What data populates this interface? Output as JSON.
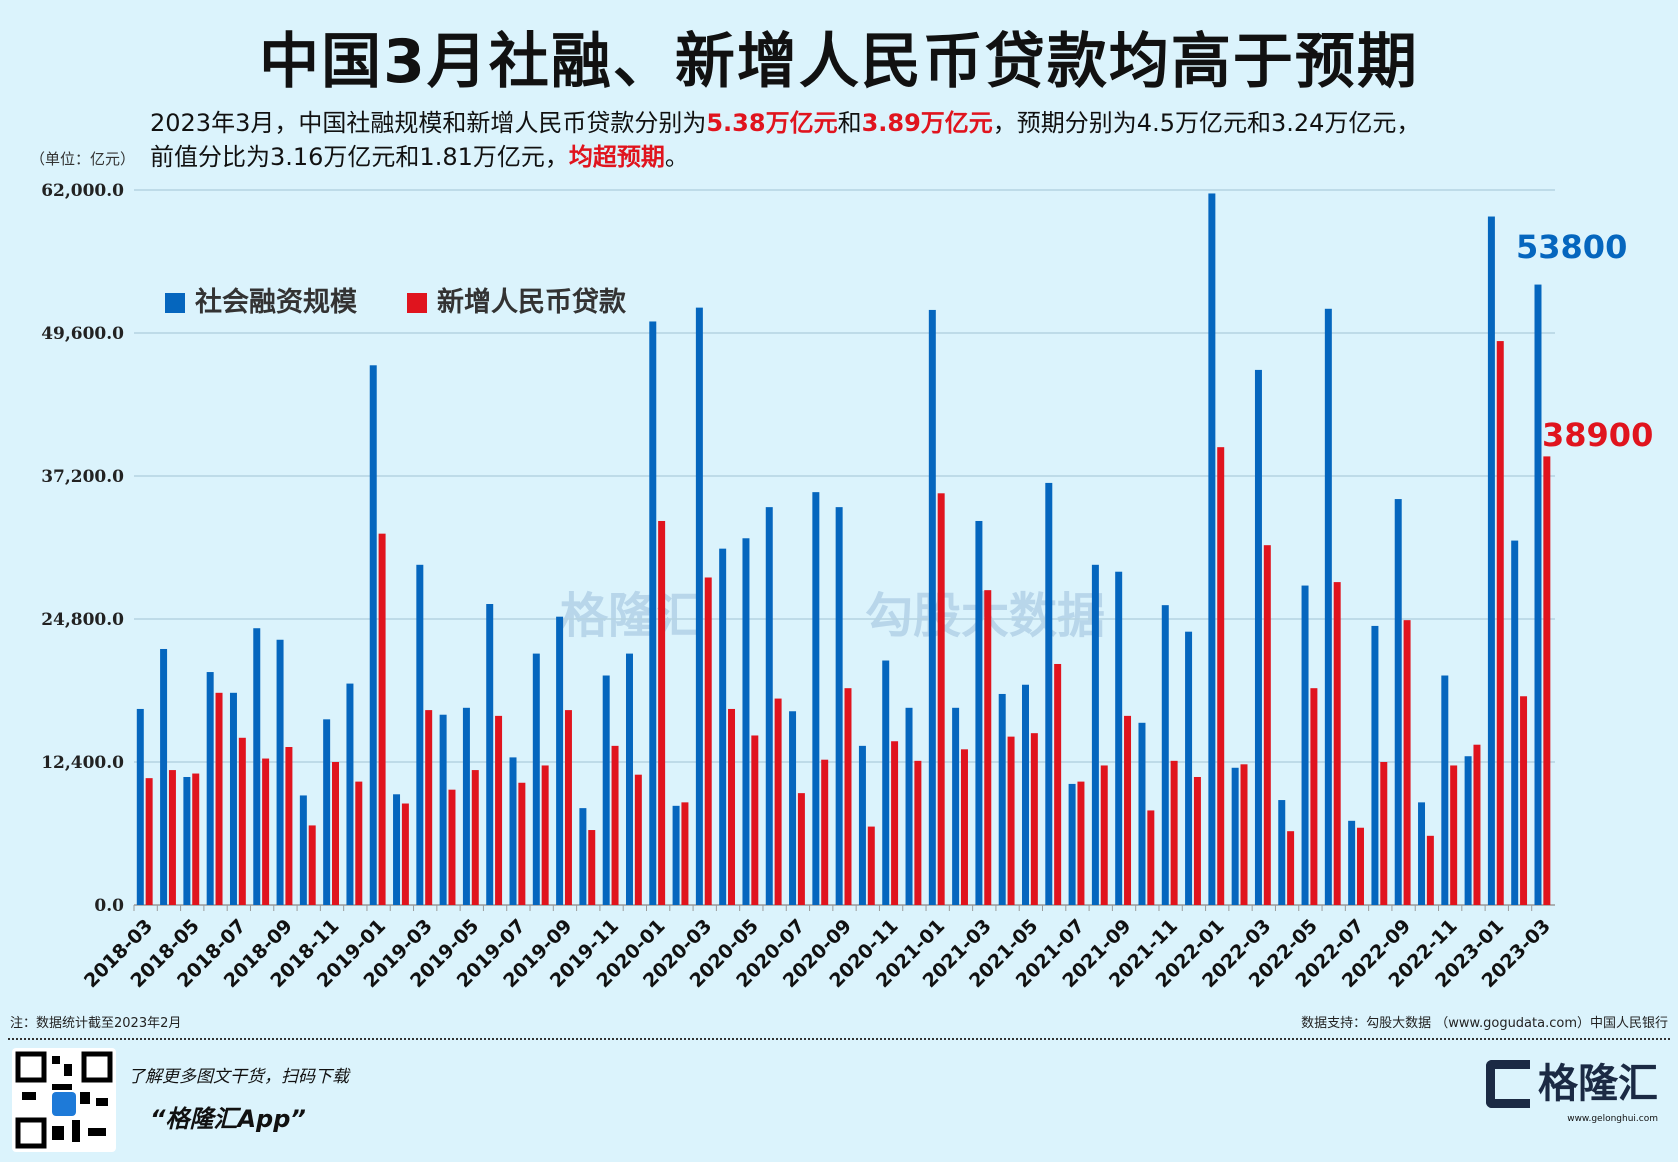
{
  "title": "中国3月社融、新增人民币贷款均高于预期",
  "subtitle": {
    "line1_a": "2023年3月，中国社融规模和新增人民币贷款分别为",
    "line1_hl1": "5.38万亿元",
    "line1_b": "和",
    "line1_hl2": "3.89万亿元",
    "line1_c": "，预期分别为4.5万亿元和3.24万亿元，",
    "line2_a": "前值分比为3.16万亿元和1.81万亿元，",
    "line2_hl": "均超预期",
    "line2_b": "。"
  },
  "unit": "（单位：亿元）",
  "watermark": {
    "left": "格隆汇",
    "right": "勾股大数据",
    "url": "www.gogudata.com"
  },
  "footer": {
    "note": "注：数据统计截至2023年2月",
    "source": "数据支持：勾股大数据 （www.gogudata.com）中国人民银行",
    "promo": "了解更多图文干货，扫码下载",
    "app": "“格隆汇App”",
    "logo_text": "格隆汇",
    "logo_url": "www.gelonghui.com"
  },
  "chart_data": {
    "type": "bar",
    "ylim": [
      0,
      62000
    ],
    "yticks": [
      "0.0",
      "12,400.0",
      "24,800.0",
      "37,200.0",
      "49,600.0",
      "62,000.0"
    ],
    "ytick_values": [
      0,
      12400,
      24800,
      37200,
      49600,
      62000
    ],
    "grid": true,
    "legend_position": "top-left",
    "colors": {
      "社会融资规模": "#0566be",
      "新增人民币贷款": "#e0141e"
    },
    "end_labels": [
      "53800",
      "38900"
    ],
    "categories": [
      "2018-03",
      "2018-04",
      "2018-05",
      "2018-06",
      "2018-07",
      "2018-08",
      "2018-09",
      "2018-10",
      "2018-11",
      "2018-12",
      "2019-01",
      "2019-02",
      "2019-03",
      "2019-04",
      "2019-05",
      "2019-06",
      "2019-07",
      "2019-08",
      "2019-09",
      "2019-10",
      "2019-11",
      "2019-12",
      "2020-01",
      "2020-02",
      "2020-03",
      "2020-04",
      "2020-05",
      "2020-06",
      "2020-07",
      "2020-08",
      "2020-09",
      "2020-10",
      "2020-11",
      "2020-12",
      "2021-01",
      "2021-02",
      "2021-03",
      "2021-04",
      "2021-05",
      "2021-06",
      "2021-07",
      "2021-08",
      "2021-09",
      "2021-10",
      "2021-11",
      "2021-12",
      "2022-01",
      "2022-02",
      "2022-03",
      "2022-04",
      "2022-05",
      "2022-06",
      "2022-07",
      "2022-08",
      "2022-09",
      "2022-10",
      "2022-11",
      "2022-12",
      "2023-01",
      "2023-02",
      "2023-03"
    ],
    "series": [
      {
        "name": "社会融资规模",
        "values": [
          17000,
          22200,
          11100,
          20200,
          18400,
          24000,
          23000,
          9500,
          16100,
          19200,
          46800,
          9600,
          29500,
          16500,
          17100,
          26100,
          12800,
          21800,
          25000,
          8400,
          19900,
          21800,
          50600,
          8600,
          51800,
          30900,
          31800,
          34500,
          16800,
          35800,
          34500,
          13800,
          21200,
          17100,
          51600,
          17100,
          33300,
          18300,
          19100,
          36600,
          10500,
          29500,
          28900,
          15800,
          26000,
          23700,
          61700,
          11900,
          46400,
          9100,
          27700,
          51700,
          7300,
          24200,
          35200,
          8900,
          19900,
          12900,
          59700,
          31600,
          53800
        ]
      },
      {
        "name": "新增人民币贷款",
        "values": [
          11000,
          11700,
          11400,
          18400,
          14500,
          12700,
          13700,
          6900,
          12400,
          10700,
          32200,
          8800,
          16900,
          10000,
          11700,
          16400,
          10600,
          12100,
          16900,
          6500,
          13800,
          11300,
          33300,
          8900,
          28400,
          17000,
          14700,
          17900,
          9700,
          12600,
          18800,
          6800,
          14200,
          12500,
          35700,
          13500,
          27300,
          14600,
          14900,
          20900,
          10700,
          12100,
          16400,
          8200,
          12500,
          11100,
          39700,
          12200,
          31200,
          6400,
          18800,
          28000,
          6700,
          12400,
          24700,
          6000,
          12100,
          13900,
          48900,
          18100,
          38900
        ]
      }
    ]
  }
}
